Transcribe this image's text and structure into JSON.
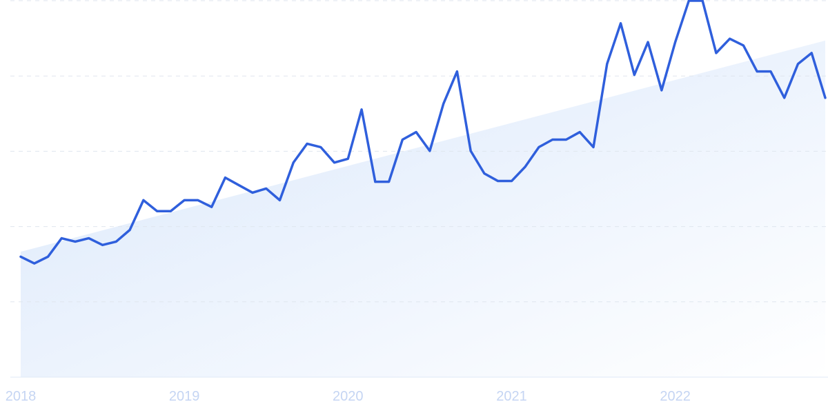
{
  "chart_data": {
    "type": "line",
    "categories": [
      "2018",
      null,
      null,
      null,
      null,
      null,
      null,
      null,
      null,
      null,
      null,
      null,
      "2019",
      null,
      null,
      null,
      null,
      null,
      null,
      null,
      null,
      null,
      null,
      null,
      "2020",
      null,
      null,
      null,
      null,
      null,
      null,
      null,
      null,
      null,
      null,
      null,
      "2021",
      null,
      null,
      null,
      null,
      null,
      null,
      null,
      null,
      null,
      null,
      null,
      "2022",
      null,
      null,
      null,
      null,
      null,
      null,
      null,
      null,
      null,
      null,
      null
    ],
    "values": [
      32.0,
      30.2,
      32.0,
      36.9,
      36.0,
      36.9,
      35.1,
      36.0,
      39.1,
      47.0,
      44.1,
      44.1,
      47.0,
      47.0,
      45.2,
      53.0,
      51.0,
      49.0,
      50.1,
      47.0,
      57.0,
      62.0,
      61.1,
      57.0,
      58.0,
      71.1,
      51.9,
      51.9,
      63.1,
      65.1,
      60.1,
      72.6,
      81.2,
      60.1,
      54.1,
      52.1,
      52.1,
      55.9,
      61.1,
      63.1,
      63.1,
      65.1,
      61.1,
      83.2,
      94.0,
      80.3,
      89.0,
      76.2,
      89.0,
      100,
      100,
      86.1,
      89.9,
      88.1,
      81.2,
      81.2,
      74.2,
      83.2,
      86.1,
      74.2
    ],
    "color": "#2f5fdc",
    "trend": [
      33.3,
      89.4
    ],
    "trend_color": "#dde9fb",
    "ylim": [
      0,
      100
    ],
    "yticks": [
      0,
      20,
      40,
      60,
      80,
      100
    ],
    "grid": true
  }
}
